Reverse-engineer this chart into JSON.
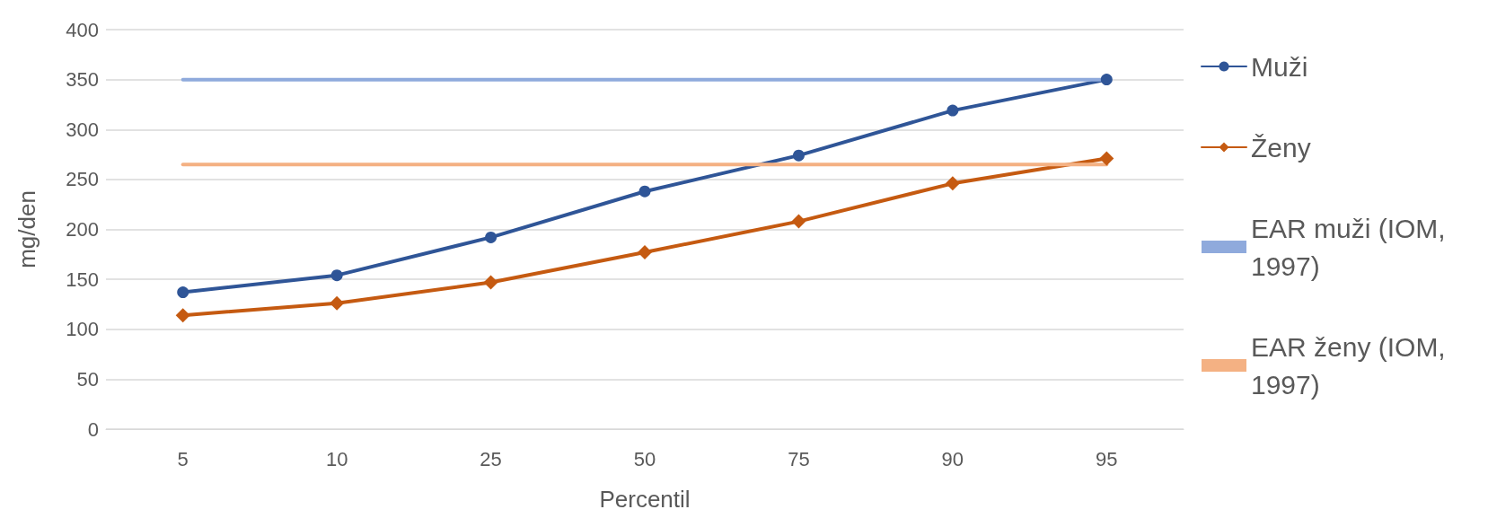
{
  "chart_data": {
    "type": "line",
    "xlabel": "Percentil",
    "ylabel": "mg/den",
    "categories": [
      "5",
      "10",
      "25",
      "50",
      "75",
      "90",
      "95"
    ],
    "series": [
      {
        "name": "Muži",
        "color": "#2f5597",
        "marker": "circle",
        "values": [
          137,
          154,
          192,
          238,
          274,
          319,
          350
        ]
      },
      {
        "name": "Ženy",
        "color": "#c55a11",
        "marker": "diamond",
        "values": [
          114,
          126,
          147,
          177,
          208,
          246,
          271
        ]
      },
      {
        "name": "EAR muži (IOM, 1997)",
        "color": "#8faadc",
        "marker": "none",
        "values": [
          350,
          350,
          350,
          350,
          350,
          350,
          350
        ]
      },
      {
        "name": "EAR ženy (IOM, 1997)",
        "color": "#f4b183",
        "marker": "none",
        "values": [
          265,
          265,
          265,
          265,
          265,
          265,
          265
        ]
      }
    ],
    "ylim": [
      0,
      400
    ],
    "yticks": [
      0,
      50,
      100,
      150,
      200,
      250,
      300,
      350,
      400
    ],
    "grid": "y",
    "legend": "right",
    "line_style": "solid"
  }
}
